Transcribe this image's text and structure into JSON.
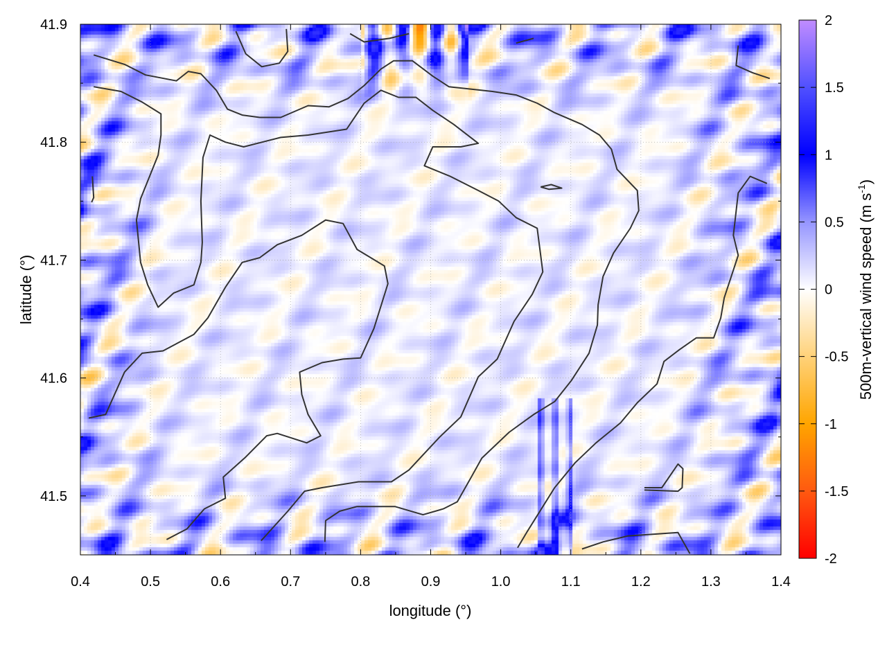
{
  "chart_data": {
    "type": "heatmap",
    "title": "",
    "xlabel": "longitude (°)",
    "ylabel": "latitude (°)",
    "xlim": [
      0.4,
      1.4
    ],
    "ylim": [
      41.45,
      41.9
    ],
    "xticks": [
      "0.4",
      "0.5",
      "0.6",
      "0.7",
      "0.8",
      "0.9",
      "1.0",
      "1.1",
      "1.2",
      "1.3",
      "1.4"
    ],
    "yticks": [
      "41.5",
      "41.6",
      "41.7",
      "41.8",
      "41.9"
    ],
    "grid": true,
    "colorbar": {
      "label": "500m-vertical wind speed (m s",
      "label_sup": "-1",
      "label_end": ")",
      "range": [
        -2,
        2
      ],
      "ticks": [
        "2",
        "1.5",
        "1",
        "0.5",
        "0",
        "-0.5",
        "-1",
        "-1.5",
        "-2"
      ],
      "stops": [
        {
          "v": -2,
          "color": "#ff0000"
        },
        {
          "v": -1.5,
          "color": "#ff5a10"
        },
        {
          "v": -1,
          "color": "#ffa500"
        },
        {
          "v": -0.5,
          "color": "#ffd27a"
        },
        {
          "v": 0,
          "color": "#ffffff"
        },
        {
          "v": 0.5,
          "color": "#9696ff"
        },
        {
          "v": 1,
          "color": "#0000ff"
        },
        {
          "v": 1.5,
          "color": "#5050ff"
        },
        {
          "v": 2,
          "color": "#c08cff"
        }
      ]
    },
    "contour_color": "#333333",
    "contours": [
      [
        [
          0.412,
          41.566
        ],
        [
          0.436,
          41.569
        ],
        [
          0.463,
          41.605
        ],
        [
          0.488,
          41.621
        ],
        [
          0.518,
          41.623
        ],
        [
          0.562,
          41.637
        ],
        [
          0.582,
          41.651
        ],
        [
          0.607,
          41.677
        ],
        [
          0.631,
          41.698
        ],
        [
          0.656,
          41.702
        ],
        [
          0.681,
          41.713
        ],
        [
          0.716,
          41.721
        ],
        [
          0.75,
          41.734
        ],
        [
          0.775,
          41.731
        ],
        [
          0.795,
          41.709
        ],
        [
          0.834,
          41.695
        ],
        [
          0.839,
          41.68
        ],
        [
          0.819,
          41.642
        ],
        [
          0.8,
          41.617
        ],
        [
          0.775,
          41.616
        ],
        [
          0.745,
          41.613
        ],
        [
          0.713,
          41.605
        ],
        [
          0.716,
          41.586
        ],
        [
          0.725,
          41.569
        ],
        [
          0.743,
          41.551
        ],
        [
          0.723,
          41.545
        ],
        [
          0.681,
          41.553
        ],
        [
          0.666,
          41.551
        ],
        [
          0.636,
          41.533
        ],
        [
          0.604,
          41.516
        ],
        [
          0.607,
          41.498
        ],
        [
          0.577,
          41.489
        ],
        [
          0.552,
          41.472
        ],
        [
          0.523,
          41.463
        ]
      ],
      [
        [
          0.419,
          41.847
        ],
        [
          0.458,
          41.843
        ],
        [
          0.488,
          41.834
        ],
        [
          0.515,
          41.824
        ],
        [
          0.515,
          41.806
        ],
        [
          0.511,
          41.789
        ],
        [
          0.486,
          41.752
        ],
        [
          0.48,
          41.734
        ],
        [
          0.486,
          41.698
        ],
        [
          0.496,
          41.679
        ],
        [
          0.511,
          41.66
        ],
        [
          0.533,
          41.672
        ],
        [
          0.562,
          41.679
        ],
        [
          0.572,
          41.698
        ],
        [
          0.574,
          41.715
        ],
        [
          0.572,
          41.75
        ],
        [
          0.575,
          41.787
        ],
        [
          0.585,
          41.806
        ],
        [
          0.607,
          41.8
        ],
        [
          0.633,
          41.796
        ],
        [
          0.686,
          41.804
        ],
        [
          0.725,
          41.806
        ],
        [
          0.78,
          41.811
        ],
        [
          0.805,
          41.833
        ],
        [
          0.829,
          41.844
        ],
        [
          0.854,
          41.838
        ],
        [
          0.879,
          41.838
        ],
        [
          0.903,
          41.827
        ],
        [
          0.933,
          41.815
        ],
        [
          0.968,
          41.799
        ],
        [
          0.943,
          41.796
        ],
        [
          0.903,
          41.796
        ],
        [
          0.891,
          41.78
        ],
        [
          0.928,
          41.771
        ],
        [
          0.968,
          41.759
        ],
        [
          0.997,
          41.75
        ],
        [
          1.022,
          41.736
        ],
        [
          1.052,
          41.727
        ],
        [
          1.06,
          41.69
        ],
        [
          1.045,
          41.671
        ],
        [
          1.019,
          41.648
        ],
        [
          0.995,
          41.616
        ],
        [
          0.968,
          41.601
        ],
        [
          0.943,
          41.567
        ],
        [
          0.913,
          41.55
        ],
        [
          0.891,
          41.536
        ],
        [
          0.869,
          41.522
        ],
        [
          0.844,
          41.512
        ],
        [
          0.797,
          41.512
        ],
        [
          0.745,
          41.507
        ],
        [
          0.72,
          41.504
        ],
        [
          0.696,
          41.487
        ],
        [
          0.658,
          41.462
        ]
      ],
      [
        [
          0.419,
          41.874
        ],
        [
          0.463,
          41.866
        ],
        [
          0.493,
          41.857
        ],
        [
          0.537,
          41.852
        ],
        [
          0.554,
          41.86
        ],
        [
          0.572,
          41.858
        ],
        [
          0.594,
          41.844
        ],
        [
          0.61,
          41.828
        ],
        [
          0.631,
          41.823
        ],
        [
          0.656,
          41.821
        ],
        [
          0.686,
          41.821
        ],
        [
          0.725,
          41.831
        ],
        [
          0.755,
          41.83
        ],
        [
          0.782,
          41.837
        ],
        [
          0.805,
          41.848
        ],
        [
          0.829,
          41.862
        ],
        [
          0.847,
          41.869
        ],
        [
          0.874,
          41.869
        ],
        [
          0.903,
          41.856
        ],
        [
          0.926,
          41.847
        ],
        [
          0.988,
          41.843
        ],
        [
          1.022,
          41.84
        ],
        [
          1.052,
          41.833
        ],
        [
          1.077,
          41.825
        ],
        [
          1.116,
          41.815
        ],
        [
          1.141,
          41.806
        ],
        [
          1.158,
          41.794
        ],
        [
          1.166,
          41.777
        ],
        [
          1.195,
          41.759
        ],
        [
          1.197,
          41.742
        ],
        [
          1.185,
          41.727
        ],
        [
          1.161,
          41.706
        ],
        [
          1.146,
          41.686
        ],
        [
          1.139,
          41.662
        ],
        [
          1.138,
          41.645
        ],
        [
          1.126,
          41.621
        ],
        [
          1.101,
          41.598
        ],
        [
          1.077,
          41.58
        ],
        [
          1.047,
          41.569
        ],
        [
          1.012,
          41.554
        ],
        [
          0.973,
          41.532
        ],
        [
          0.958,
          41.516
        ],
        [
          0.938,
          41.495
        ],
        [
          0.918,
          41.489
        ],
        [
          0.889,
          41.484
        ],
        [
          0.849,
          41.491
        ],
        [
          0.795,
          41.491
        ],
        [
          0.77,
          41.487
        ],
        [
          0.75,
          41.479
        ],
        [
          0.749,
          41.461
        ]
      ],
      [
        [
          1.38,
          41.765
        ],
        [
          1.356,
          41.771
        ],
        [
          1.339,
          41.757
        ],
        [
          1.332,
          41.721
        ],
        [
          1.339,
          41.704
        ],
        [
          1.329,
          41.686
        ],
        [
          1.319,
          41.668
        ],
        [
          1.314,
          41.651
        ],
        [
          1.304,
          41.634
        ],
        [
          1.279,
          41.634
        ],
        [
          1.255,
          41.624
        ],
        [
          1.233,
          41.614
        ],
        [
          1.223,
          41.595
        ],
        [
          1.195,
          41.579
        ],
        [
          1.171,
          41.562
        ],
        [
          1.136,
          41.545
        ],
        [
          1.106,
          41.528
        ],
        [
          1.077,
          41.507
        ],
        [
          1.057,
          41.488
        ],
        [
          1.037,
          41.469
        ],
        [
          1.024,
          41.456
        ]
      ],
      [
        [
          1.116,
          41.455
        ],
        [
          1.146,
          41.461
        ],
        [
          1.181,
          41.466
        ],
        [
          1.253,
          41.469
        ],
        [
          1.27,
          41.451
        ]
      ],
      [
        [
          1.205,
          41.507
        ],
        [
          1.23,
          41.507
        ],
        [
          1.253,
          41.527
        ],
        [
          1.26,
          41.523
        ],
        [
          1.259,
          41.507
        ],
        [
          1.253,
          41.504
        ],
        [
          1.205,
          41.505
        ]
      ],
      [
        [
          0.622,
          41.894
        ],
        [
          0.636,
          41.875
        ],
        [
          0.659,
          41.864
        ],
        [
          0.684,
          41.867
        ],
        [
          0.696,
          41.877
        ],
        [
          0.694,
          41.896
        ]
      ],
      [
        [
          0.785,
          41.892
        ],
        [
          0.805,
          41.885
        ],
        [
          0.841,
          41.888
        ],
        [
          0.869,
          41.892
        ]
      ],
      [
        [
          1.339,
          41.882
        ],
        [
          1.336,
          41.865
        ],
        [
          1.359,
          41.859
        ],
        [
          1.384,
          41.854
        ]
      ],
      [
        [
          1.022,
          41.884
        ],
        [
          1.047,
          41.888
        ]
      ],
      [
        [
          0.417,
          41.771
        ],
        [
          0.419,
          41.753
        ],
        [
          0.416,
          41.749
        ]
      ],
      [
        [
          1.057,
          41.762
        ],
        [
          1.072,
          41.764
        ],
        [
          1.087,
          41.761
        ],
        [
          1.069,
          41.76
        ],
        [
          1.057,
          41.762
        ]
      ]
    ]
  }
}
